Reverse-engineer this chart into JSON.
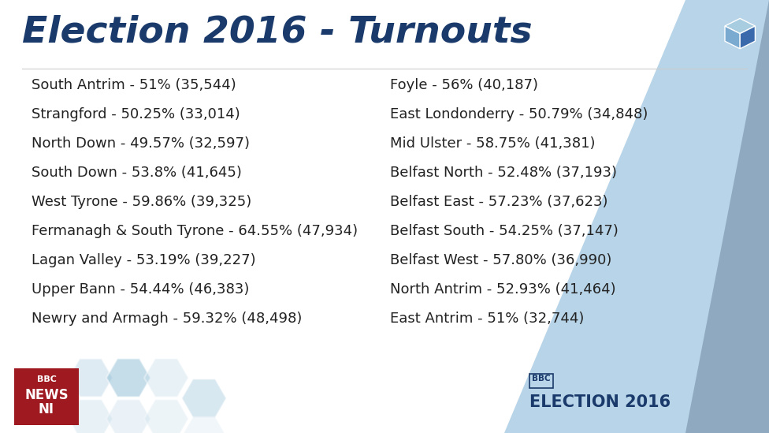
{
  "title": "Election 2016 - Turnouts",
  "title_color": "#1a3a6b",
  "title_fontsize": 34,
  "background_color": "#ffffff",
  "text_color": "#222222",
  "text_fontsize": 13.0,
  "left_column": [
    "South Antrim - 51% (35,544)",
    "Strangford - 50.25% (33,014)",
    "North Down - 49.57% (32,597)",
    "South Down - 53.8% (41,645)",
    "West Tyrone - 59.86% (39,325)",
    "Fermanagh & South Tyrone - 64.55% (47,934)",
    "Lagan Valley - 53.19% (39,227)",
    "Upper Bann - 54.44% (46,383)",
    "Newry and Armagh - 59.32% (48,498)"
  ],
  "right_column": [
    "Foyle - 56% (40,187)",
    "East Londonderry - 50.79% (34,848)",
    "Mid Ulster - 58.75% (41,381)",
    "Belfast North - 52.48% (37,193)",
    "Belfast East - 57.23% (37,623)",
    "Belfast South - 54.25% (37,147)",
    "Belfast West - 57.80% (36,990)",
    "North Antrim - 52.93% (41,464)",
    "East Antrim - 51% (32,744)"
  ],
  "footer_left_bg": "#9e1a20",
  "footer_right_bg_light": "#b8d4e8",
  "footer_right_bg_mid": "#c8daea",
  "footer_right_bg_dark": "#8faac0",
  "hex_color_light": "#c5dcea",
  "hex_color_mid": "#7fb4cf",
  "hex_color_dark": "#4a8ab0",
  "bbc_box_color": "#1a3a6b",
  "election_text_color": "#1a3a6b",
  "cube_color_front": "#3a6aab",
  "cube_color_side": "#7aaad0",
  "cube_color_top": "#a8cce0"
}
